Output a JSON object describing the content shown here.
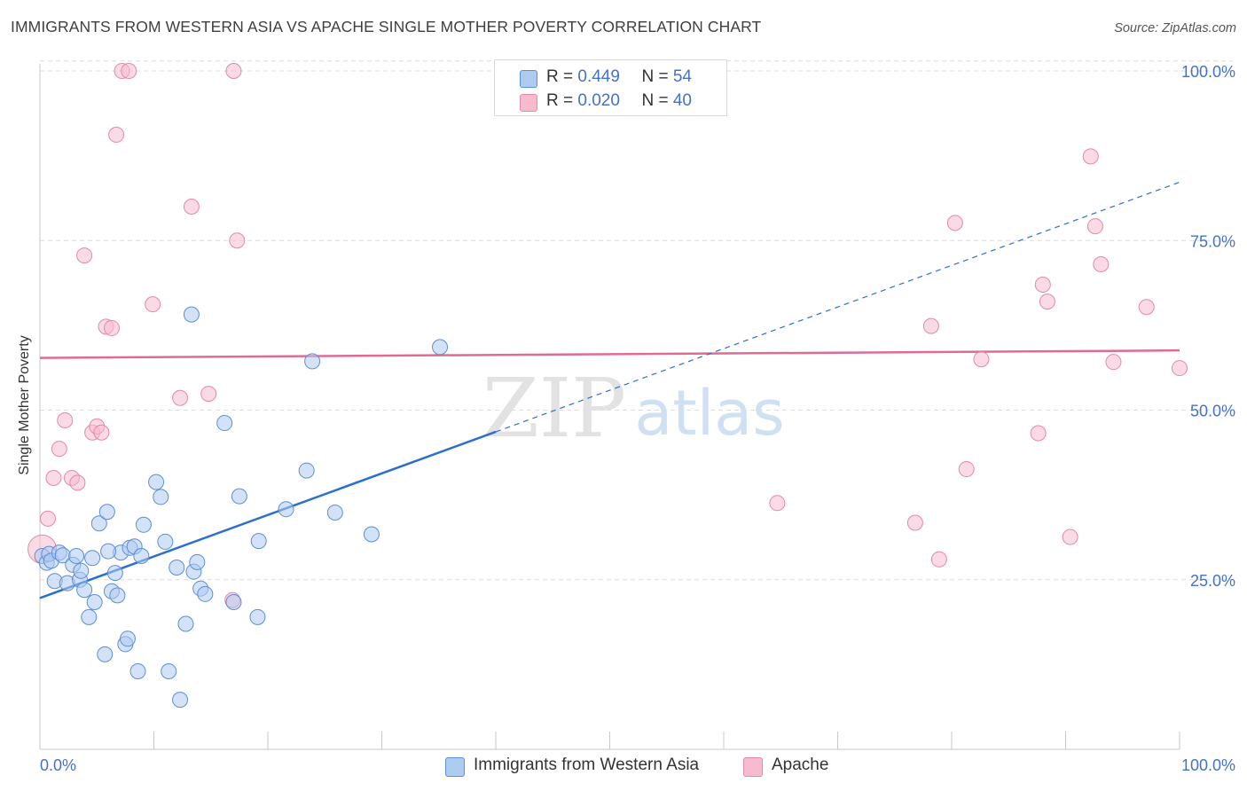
{
  "title": "IMMIGRANTS FROM WESTERN ASIA VS APACHE SINGLE MOTHER POVERTY CORRELATION CHART",
  "source": "Source: ZipAtlas.com",
  "watermark": {
    "zip": "ZIP",
    "atlas": "atlas"
  },
  "legend_top": [
    {
      "r_label": "R = ",
      "r_value": "0.449",
      "n_label": "N = ",
      "n_value": "54"
    },
    {
      "r_label": "R = ",
      "r_value": "0.020",
      "n_label": "N = ",
      "n_value": "40"
    }
  ],
  "legend_bottom": [
    "Immigrants from Western Asia",
    "Apache"
  ],
  "colors": {
    "blue_fill": "#aecbf0",
    "blue_stroke": "#5b8fd6",
    "blue_line": "#2a6fd1",
    "pink_fill": "#f6bccd",
    "pink_stroke": "#e38aa6",
    "pink_line": "#e06b92",
    "tick_label": "#4472c4",
    "grid": "#dcdcdc"
  },
  "chart_data": {
    "type": "scatter",
    "title": "IMMIGRANTS FROM WESTERN ASIA VS APACHE SINGLE MOTHER POVERTY CORRELATION CHART",
    "xlabel": "",
    "ylabel": "Single Mother Poverty",
    "xlim": [
      0,
      100
    ],
    "ylim": [
      0,
      102
    ],
    "x_tick_labels": [
      "0.0%",
      "100.0%"
    ],
    "y_ticks": [
      25,
      50,
      75,
      100
    ],
    "y_tick_labels": [
      "25.0%",
      "50.0%",
      "75.0%",
      "100.0%"
    ],
    "grid": true,
    "legend_position": "top-center",
    "series": [
      {
        "name": "Immigrants from Western Asia",
        "color": "#aecbf0",
        "points": [
          [
            0.2,
            28.5
          ],
          [
            0.6,
            27.5
          ],
          [
            0.8,
            28.8
          ],
          [
            1.0,
            27.8
          ],
          [
            1.3,
            24.8
          ],
          [
            1.7,
            29.0
          ],
          [
            2.0,
            28.6
          ],
          [
            2.4,
            24.5
          ],
          [
            2.9,
            27.2
          ],
          [
            3.5,
            25.0
          ],
          [
            3.6,
            26.3
          ],
          [
            3.9,
            23.5
          ],
          [
            4.3,
            19.5
          ],
          [
            4.6,
            28.2
          ],
          [
            4.8,
            21.7
          ],
          [
            5.2,
            33.3
          ],
          [
            5.7,
            14.0
          ],
          [
            5.9,
            35.0
          ],
          [
            6.3,
            23.3
          ],
          [
            6.6,
            26.0
          ],
          [
            6.8,
            22.7
          ],
          [
            7.1,
            29.0
          ],
          [
            7.5,
            15.5
          ],
          [
            7.7,
            16.3
          ],
          [
            7.9,
            29.7
          ],
          [
            8.3,
            29.9
          ],
          [
            8.6,
            11.5
          ],
          [
            8.9,
            28.5
          ],
          [
            9.1,
            33.1
          ],
          [
            10.2,
            39.4
          ],
          [
            10.6,
            37.2
          ],
          [
            11.0,
            30.6
          ],
          [
            11.3,
            11.5
          ],
          [
            12.0,
            26.8
          ],
          [
            12.3,
            7.3
          ],
          [
            12.8,
            18.5
          ],
          [
            13.3,
            64.1
          ],
          [
            13.5,
            26.2
          ],
          [
            13.8,
            27.6
          ],
          [
            14.1,
            23.7
          ],
          [
            14.5,
            22.9
          ],
          [
            16.2,
            48.1
          ],
          [
            17.0,
            21.7
          ],
          [
            17.5,
            37.3
          ],
          [
            19.1,
            19.5
          ],
          [
            19.2,
            30.7
          ],
          [
            21.6,
            35.4
          ],
          [
            23.4,
            41.1
          ],
          [
            23.9,
            57.2
          ],
          [
            25.9,
            34.9
          ],
          [
            29.1,
            31.7
          ],
          [
            35.1,
            59.3
          ],
          [
            3.2,
            28.5
          ],
          [
            6.0,
            29.2
          ]
        ]
      },
      {
        "name": "Apache",
        "color": "#f6bccd",
        "points": [
          [
            0.2,
            29.5
          ],
          [
            0.7,
            34.0
          ],
          [
            1.2,
            40.0
          ],
          [
            1.7,
            44.3
          ],
          [
            2.2,
            48.5
          ],
          [
            2.8,
            40.0
          ],
          [
            3.3,
            39.3
          ],
          [
            3.9,
            72.8
          ],
          [
            4.6,
            46.7
          ],
          [
            5.0,
            47.6
          ],
          [
            5.4,
            46.7
          ],
          [
            5.8,
            62.3
          ],
          [
            6.3,
            62.1
          ],
          [
            6.7,
            90.6
          ],
          [
            7.2,
            100.0
          ],
          [
            7.8,
            100.0
          ],
          [
            9.9,
            65.6
          ],
          [
            12.3,
            51.8
          ],
          [
            13.3,
            80.0
          ],
          [
            14.8,
            52.4
          ],
          [
            16.9,
            22.0
          ],
          [
            17.0,
            100.0
          ],
          [
            17.3,
            75.0
          ],
          [
            64.7,
            36.3
          ],
          [
            76.8,
            33.4
          ],
          [
            78.2,
            62.4
          ],
          [
            78.9,
            28.0
          ],
          [
            80.3,
            77.6
          ],
          [
            81.3,
            41.3
          ],
          [
            82.6,
            57.5
          ],
          [
            87.6,
            46.6
          ],
          [
            88.0,
            68.5
          ],
          [
            88.4,
            66.0
          ],
          [
            90.4,
            31.3
          ],
          [
            92.2,
            87.4
          ],
          [
            92.6,
            77.1
          ],
          [
            93.1,
            71.5
          ],
          [
            94.2,
            57.1
          ],
          [
            97.1,
            65.2
          ],
          [
            100.0,
            56.2
          ]
        ]
      }
    ],
    "trend_lines": [
      {
        "series": "Immigrants from Western Asia",
        "solid": [
          [
            0,
            22.3
          ],
          [
            40.0,
            46.8
          ]
        ],
        "dashed": [
          [
            40.0,
            46.8
          ],
          [
            100,
            83.6
          ]
        ]
      },
      {
        "series": "Apache",
        "solid": [
          [
            0,
            57.7
          ],
          [
            100,
            58.8
          ]
        ]
      }
    ]
  }
}
